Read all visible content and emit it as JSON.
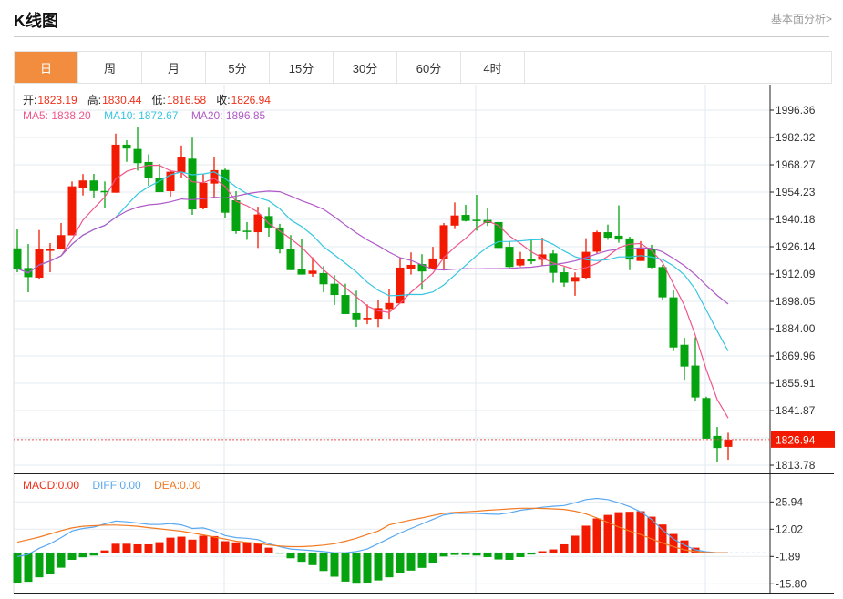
{
  "header": {
    "title": "K线图",
    "link": "基本面分析>"
  },
  "tabs": [
    {
      "label": "日",
      "active": true
    },
    {
      "label": "周"
    },
    {
      "label": "月"
    },
    {
      "label": "5分"
    },
    {
      "label": "15分"
    },
    {
      "label": "30分"
    },
    {
      "label": "60分"
    },
    {
      "label": "4时"
    }
  ],
  "ohlc_info": {
    "open_label": "开:",
    "open": "1823.19",
    "high_label": "高:",
    "high": "1830.44",
    "low_label": "低:",
    "low": "1816.58",
    "close_label": "收:",
    "close": "1826.94"
  },
  "ma_info": {
    "ma5": "MA5: 1838.20",
    "ma10": "MA10: 1872.67",
    "ma20": "MA20: 1896.85"
  },
  "macd_info": {
    "macd": "MACD:0.00",
    "diff": "DIFF:0.00",
    "dea": "DEA:0.00"
  },
  "colors": {
    "up": "#f21a00",
    "down": "#05a30f",
    "ma5": "#f0558a",
    "ma10": "#36c6e0",
    "ma20": "#b05ac8",
    "diff": "#5aa8f0",
    "dea": "#f27a23",
    "active_tab": "#f28c3e"
  },
  "chart_data": [
    {
      "type": "candlestick",
      "ylim": [
        1805,
        2006
      ],
      "y_ticks": [
        "1996.36",
        "1982.32",
        "1968.27",
        "1954.23",
        "1940.18",
        "1926.14",
        "1912.09",
        "1898.05",
        "1884.00",
        "1869.96",
        "1855.91",
        "1841.87",
        "1813.78"
      ],
      "last_price_label": "1826.94",
      "moving_averages": [
        "MA5",
        "MA10",
        "MA20"
      ],
      "ohlc": [
        [
          1925.3,
          1935.0,
          1913.0,
          1914.9
        ],
        [
          1915.2,
          1927.5,
          1902.7,
          1910.5
        ],
        [
          1910.2,
          1934.7,
          1909.7,
          1924.9
        ],
        [
          1924.0,
          1928.0,
          1913.0,
          1924.9
        ],
        [
          1924.7,
          1938.3,
          1924.7,
          1932.1
        ],
        [
          1932.0,
          1959.7,
          1932.0,
          1957.2
        ],
        [
          1956.4,
          1963.5,
          1952.5,
          1960.2
        ],
        [
          1960.2,
          1963.6,
          1951.0,
          1954.8
        ],
        [
          1954.8,
          1959.7,
          1945.8,
          1954.3
        ],
        [
          1953.9,
          1984.3,
          1953.9,
          1978.6
        ],
        [
          1978.6,
          1980.9,
          1969.8,
          1976.6
        ],
        [
          1976.4,
          1987.5,
          1965.3,
          1969.1
        ],
        [
          1969.7,
          1973.7,
          1957.5,
          1961.4
        ],
        [
          1961.7,
          1968.7,
          1954.2,
          1954.2
        ],
        [
          1954.7,
          1965.6,
          1951.9,
          1964.7
        ],
        [
          1964.1,
          1978.2,
          1961.7,
          1972.0
        ],
        [
          1971.4,
          1982.2,
          1942.5,
          1945.3
        ],
        [
          1945.9,
          1963.6,
          1945.3,
          1959.0
        ],
        [
          1958.6,
          1972.5,
          1951.1,
          1965.5
        ],
        [
          1965.6,
          1966.3,
          1941.1,
          1943.6
        ],
        [
          1950.0,
          1954.7,
          1932.8,
          1934.1
        ],
        [
          1934.4,
          1938.8,
          1929.7,
          1933.8
        ],
        [
          1933.6,
          1946.7,
          1925.5,
          1942.7
        ],
        [
          1941.9,
          1946.6,
          1931.3,
          1936.0
        ],
        [
          1936.0,
          1937.9,
          1922.7,
          1924.7
        ],
        [
          1925.0,
          1932.1,
          1914.1,
          1914.1
        ],
        [
          1914.8,
          1930.0,
          1911.8,
          1911.8
        ],
        [
          1912.2,
          1920.7,
          1910.7,
          1913.8
        ],
        [
          1912.6,
          1916.2,
          1902.7,
          1906.8
        ],
        [
          1907.1,
          1911.5,
          1896.2,
          1901.3
        ],
        [
          1901.3,
          1907.1,
          1891.5,
          1891.5
        ],
        [
          1892.0,
          1903.5,
          1884.9,
          1888.8
        ],
        [
          1888.8,
          1896.5,
          1886.3,
          1889.6
        ],
        [
          1889.1,
          1898.5,
          1884.8,
          1894.6
        ],
        [
          1894.1,
          1904.3,
          1889.1,
          1897.2
        ],
        [
          1897.0,
          1920.7,
          1897.0,
          1915.4
        ],
        [
          1914.9,
          1923.2,
          1911.8,
          1916.8
        ],
        [
          1917.2,
          1922.3,
          1904.0,
          1913.4
        ],
        [
          1914.6,
          1926.1,
          1914.6,
          1920.1
        ],
        [
          1919.6,
          1938.3,
          1914.4,
          1937.2
        ],
        [
          1937.0,
          1948.9,
          1935.2,
          1942.2
        ],
        [
          1942.5,
          1947.7,
          1939.1,
          1939.4
        ],
        [
          1940.0,
          1952.8,
          1934.4,
          1939.7
        ],
        [
          1939.9,
          1946.1,
          1936.8,
          1938.3
        ],
        [
          1938.8,
          1938.8,
          1925.5,
          1925.5
        ],
        [
          1926.1,
          1929.0,
          1915.3,
          1915.7
        ],
        [
          1916.5,
          1923.5,
          1916.0,
          1919.6
        ],
        [
          1919.6,
          1929.7,
          1917.2,
          1918.6
        ],
        [
          1919.4,
          1930.8,
          1916.4,
          1922.2
        ],
        [
          1922.7,
          1924.3,
          1907.6,
          1912.7
        ],
        [
          1913.0,
          1915.7,
          1905.5,
          1907.6
        ],
        [
          1908.2,
          1912.9,
          1900.9,
          1910.5
        ],
        [
          1910.2,
          1930.5,
          1909.7,
          1923.5
        ],
        [
          1923.6,
          1934.4,
          1922.7,
          1933.6
        ],
        [
          1933.6,
          1937.5,
          1929.7,
          1930.8
        ],
        [
          1931.8,
          1947.4,
          1928.2,
          1929.8
        ],
        [
          1930.4,
          1931.3,
          1914.1,
          1919.5
        ],
        [
          1918.8,
          1929.0,
          1918.8,
          1925.1
        ],
        [
          1925.1,
          1927.1,
          1915.1,
          1915.4
        ],
        [
          1915.7,
          1916.8,
          1899.0,
          1900.1
        ],
        [
          1900.1,
          1903.7,
          1872.4,
          1874.3
        ],
        [
          1875.7,
          1879.3,
          1857.7,
          1864.5
        ],
        [
          1865.0,
          1879.5,
          1846.5,
          1848.6
        ],
        [
          1848.3,
          1849.0,
          1827.4,
          1827.4
        ],
        [
          1828.8,
          1833.4,
          1815.5,
          1822.6
        ],
        [
          1823.19,
          1830.44,
          1816.58,
          1826.94
        ]
      ]
    },
    {
      "type": "macd",
      "y_ticks": [
        "25.94",
        "12.02",
        "-1.89",
        "-15.80"
      ],
      "histogram": [
        -15.2,
        -14.8,
        -12.5,
        -10.8,
        -7.6,
        -3.6,
        -2.3,
        -1.4,
        1.2,
        4.6,
        4.6,
        4.3,
        4.3,
        5.4,
        7.7,
        8.2,
        6.7,
        8.7,
        8.5,
        5.9,
        5.3,
        5.1,
        5.0,
        2.6,
        -0.2,
        -2.8,
        -4.6,
        -6.3,
        -9.3,
        -12.2,
        -14.7,
        -15.3,
        -15.2,
        -14.1,
        -12.5,
        -10.1,
        -9.1,
        -7.7,
        -5.0,
        -1.9,
        -1.1,
        -1.1,
        -1.4,
        -2.2,
        -3.4,
        -3.6,
        -2.2,
        -0.9,
        0.8,
        1.7,
        4.3,
        8.7,
        13.8,
        17.5,
        19.3,
        20.7,
        20.9,
        21.2,
        18.4,
        14.4,
        9.6,
        6.3,
        2.6,
        0,
        0,
        0
      ],
      "diff": [
        -2.0,
        -0.8,
        2.3,
        4.6,
        7.7,
        11.1,
        12.4,
        13.1,
        14.7,
        16.2,
        15.8,
        15.2,
        14.5,
        14.4,
        14.9,
        14.2,
        12.4,
        12.7,
        11.1,
        8.8,
        7.7,
        7.4,
        6.7,
        4.6,
        3.1,
        1.9,
        1.5,
        1.1,
        0.6,
        0,
        0,
        0.6,
        1.9,
        4.6,
        7.4,
        10.1,
        12.4,
        14.7,
        17.0,
        19.3,
        20.1,
        20.1,
        20.1,
        19.8,
        19.6,
        20.4,
        21.7,
        22.4,
        23.2,
        23.7,
        24.1,
        25.5,
        27.1,
        27.7,
        27.1,
        25.5,
        23.5,
        20.9,
        17.0,
        11.6,
        7.0,
        3.9,
        1.5,
        0.5,
        0,
        0
      ],
      "dea": [
        5.4,
        6.7,
        8.0,
        9.6,
        11.3,
        12.7,
        13.5,
        13.8,
        14.1,
        14.1,
        13.9,
        13.5,
        12.8,
        12.2,
        11.6,
        11.0,
        10.1,
        9.1,
        8.0,
        7.0,
        5.9,
        5.3,
        4.8,
        4.0,
        3.4,
        3.1,
        3.1,
        3.4,
        3.9,
        4.6,
        5.9,
        7.4,
        9.3,
        11.1,
        14.2,
        15.5,
        16.7,
        17.8,
        19.0,
        20.1,
        20.6,
        20.9,
        21.2,
        21.7,
        22.0,
        22.4,
        22.7,
        22.7,
        22.6,
        22.4,
        22.1,
        21.2,
        19.8,
        17.8,
        15.5,
        13.1,
        11.1,
        9.3,
        7.0,
        5.0,
        3.1,
        1.5,
        0.6,
        0.2,
        0,
        0
      ]
    }
  ]
}
